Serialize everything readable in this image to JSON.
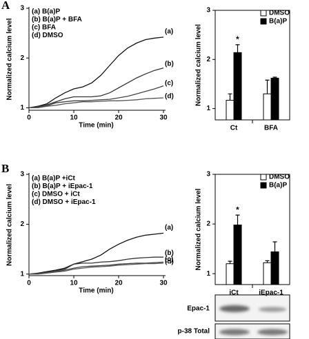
{
  "panel_labels": [
    "A",
    "B"
  ],
  "blots": [
    "Epac-1",
    "p-38 Total"
  ],
  "chart_data": [
    {
      "type": "line",
      "xlabel": "Time (min)",
      "ylabel": "Normalized calcium level",
      "x": [
        0,
        2,
        4,
        6,
        8,
        10,
        12,
        14,
        16,
        18,
        20,
        22,
        24,
        26,
        28,
        30
      ],
      "xlim": [
        0,
        30
      ],
      "xticks": [
        0,
        10,
        20,
        30
      ],
      "ylim": [
        0.95,
        3
      ],
      "yticks": [
        1,
        2,
        3
      ],
      "line_labels": [
        "(a)",
        "(b)",
        "(c)",
        "(d)"
      ],
      "series": [
        {
          "name": "(a)   B(a)P",
          "color": "#111111",
          "values": [
            1.0,
            1.03,
            1.08,
            1.2,
            1.3,
            1.38,
            1.42,
            1.5,
            1.65,
            1.85,
            2.05,
            2.2,
            2.3,
            2.37,
            2.4,
            2.42
          ]
        },
        {
          "name": "(b)   B(a)P + BFA",
          "color": "#333333",
          "values": [
            1.0,
            1.02,
            1.06,
            1.12,
            1.18,
            1.22,
            1.22,
            1.22,
            1.24,
            1.3,
            1.4,
            1.5,
            1.6,
            1.68,
            1.75,
            1.8
          ]
        },
        {
          "name": "(c)   BFA",
          "color": "#444444",
          "values": [
            1.0,
            1.01,
            1.04,
            1.1,
            1.12,
            1.14,
            1.14,
            1.15,
            1.16,
            1.17,
            1.2,
            1.23,
            1.28,
            1.33,
            1.38,
            1.44
          ]
        },
        {
          "name": "(d)   DMSO",
          "color": "#555555",
          "values": [
            1.0,
            1.0,
            1.03,
            1.05,
            1.08,
            1.1,
            1.12,
            1.12,
            1.13,
            1.14,
            1.14,
            1.15,
            1.16,
            1.18,
            1.19,
            1.2
          ]
        }
      ]
    },
    {
      "type": "bar",
      "ylabel": "Normalized calcium level",
      "categories": [
        "Ct",
        "BFA"
      ],
      "ylim": [
        0.77,
        3
      ],
      "yticks": [
        1,
        2,
        3
      ],
      "annotation": "*",
      "series": [
        {
          "name": "DMSO",
          "color": "#ffffff",
          "values": [
            1.17,
            1.3
          ],
          "errors": [
            0.13,
            0.28
          ]
        },
        {
          "name": "B(a)P",
          "color": "#000000",
          "values": [
            2.14,
            1.62
          ],
          "errors": [
            0.16,
            0.02
          ]
        }
      ]
    },
    {
      "type": "line",
      "xlabel": "Time (min)",
      "ylabel": "Normalized calcium level",
      "x": [
        0,
        2,
        4,
        6,
        8,
        10,
        12,
        14,
        16,
        18,
        20,
        22,
        24,
        26,
        28,
        30
      ],
      "xlim": [
        0,
        30
      ],
      "xticks": [
        0,
        10,
        20,
        30
      ],
      "ylim": [
        0.97,
        3
      ],
      "yticks": [
        1,
        2,
        3
      ],
      "line_labels": [
        "(a)",
        "(b)",
        "(c)",
        "(d)"
      ],
      "series": [
        {
          "name": "(a)   B(a)P +iCt",
          "color": "#111111",
          "values": [
            1.0,
            1.02,
            1.05,
            1.08,
            1.12,
            1.2,
            1.25,
            1.3,
            1.38,
            1.5,
            1.6,
            1.68,
            1.74,
            1.78,
            1.8,
            1.82
          ]
        },
        {
          "name": "(b)   B(a)P + iEpac-1",
          "color": "#333333",
          "values": [
            1.0,
            1.01,
            1.04,
            1.07,
            1.1,
            1.2,
            1.22,
            1.22,
            1.24,
            1.25,
            1.27,
            1.3,
            1.32,
            1.33,
            1.34,
            1.34
          ]
        },
        {
          "name": "(c)   DMSO + iCt",
          "color": "#444444",
          "values": [
            1.0,
            1.01,
            1.03,
            1.05,
            1.08,
            1.12,
            1.15,
            1.16,
            1.17,
            1.18,
            1.2,
            1.21,
            1.22,
            1.22,
            1.23,
            1.24
          ]
        },
        {
          "name": "(d)   DMSO + iEpac-1",
          "color": "#555555",
          "values": [
            1.0,
            1.0,
            1.02,
            1.04,
            1.06,
            1.1,
            1.12,
            1.14,
            1.15,
            1.16,
            1.18,
            1.19,
            1.2,
            1.21,
            1.21,
            1.22
          ]
        }
      ]
    },
    {
      "type": "bar",
      "ylabel": "Normalized calcium level",
      "categories": [
        "iCt",
        "iEpac-1"
      ],
      "ylim": [
        0.78,
        3
      ],
      "yticks": [
        1,
        2,
        3
      ],
      "annotation": "*",
      "series": [
        {
          "name": "DMSO",
          "color": "#ffffff",
          "values": [
            1.2,
            1.22
          ],
          "errors": [
            0.05,
            0.04
          ]
        },
        {
          "name": "B(a)P",
          "color": "#000000",
          "values": [
            1.98,
            1.44
          ],
          "errors": [
            0.2,
            0.2
          ]
        }
      ]
    }
  ]
}
